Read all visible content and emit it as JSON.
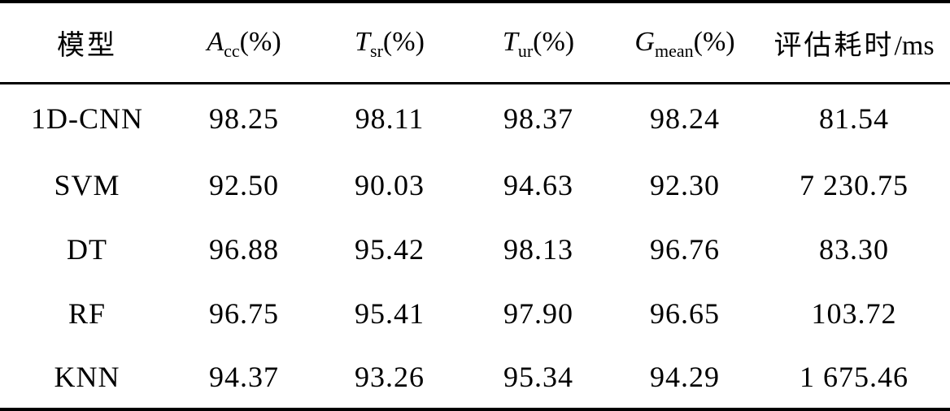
{
  "table": {
    "headers": [
      {
        "main": "模型",
        "sub": "",
        "unit": ""
      },
      {
        "main": "A",
        "sub": "cc",
        "unit": "(%)"
      },
      {
        "main": "T",
        "sub": "sr",
        "unit": "(%)"
      },
      {
        "main": "T",
        "sub": "ur",
        "unit": "(%)"
      },
      {
        "main": "G",
        "sub": "mean",
        "unit": "(%)"
      },
      {
        "main": "评估耗时",
        "sub": "",
        "unit": "/ms"
      }
    ],
    "rows": [
      [
        "1D-CNN",
        "98.25",
        "98.11",
        "98.37",
        "98.24",
        "81.54"
      ],
      [
        "SVM",
        "92.50",
        "90.03",
        "94.63",
        "92.30",
        "7 230.75"
      ],
      [
        "DT",
        "96.88",
        "95.42",
        "98.13",
        "96.76",
        "83.30"
      ],
      [
        "RF",
        "96.75",
        "95.41",
        "97.90",
        "96.65",
        "103.72"
      ],
      [
        "KNN",
        "94.37",
        "93.26",
        "95.34",
        "94.29",
        "1 675.46"
      ]
    ]
  }
}
